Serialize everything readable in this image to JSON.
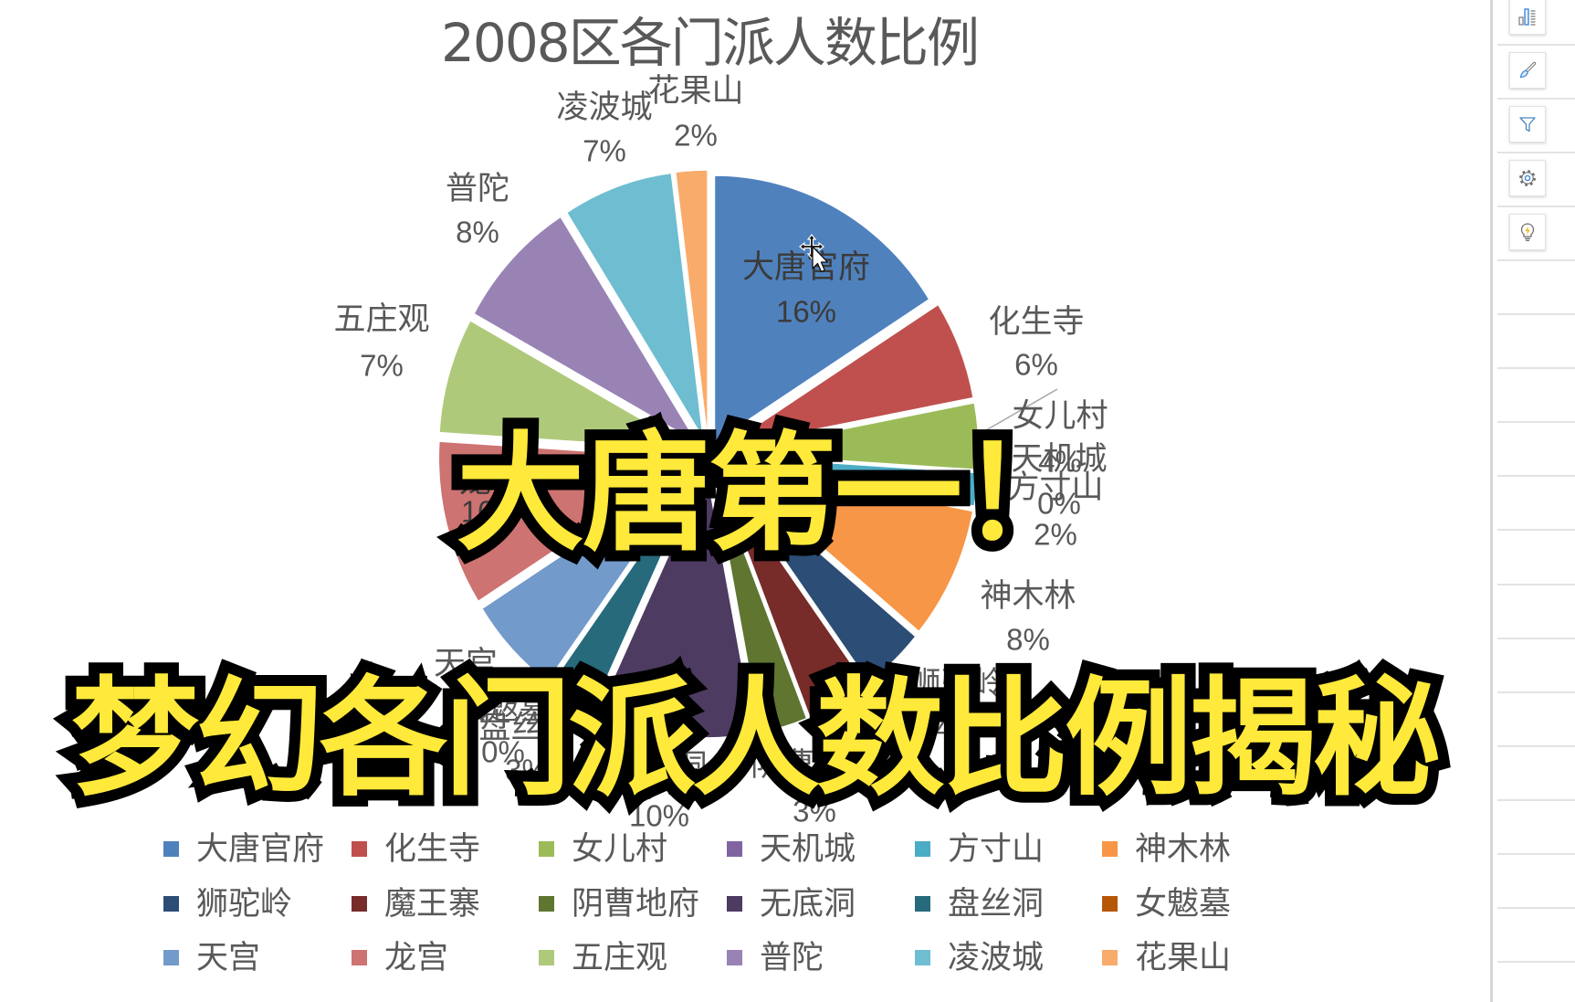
{
  "chart_data": {
    "type": "pie",
    "title": "2008区各门派人数比例",
    "exploded": true,
    "categories": [
      "大唐官府",
      "化生寺",
      "女儿村",
      "天机城",
      "方寸山",
      "神木林",
      "狮驼岭",
      "魔王寨",
      "阴曹地府",
      "无底洞",
      "盘丝洞",
      "女魃墓",
      "天宫",
      "龙宫",
      "五庄观",
      "普陀",
      "凌波城",
      "花果山"
    ],
    "values": [
      16,
      6,
      4,
      0,
      2,
      8,
      4,
      4,
      3,
      10,
      3,
      0,
      6,
      10,
      7,
      8,
      7,
      2
    ],
    "value_labels": [
      "16%",
      "6%",
      "4%",
      "0%",
      "2%",
      "8%",
      "4%",
      "4%",
      "3%",
      "10%",
      "3%",
      "0%",
      "6%",
      "10%",
      "7%",
      "8%",
      "7%",
      "2%"
    ],
    "unit": "%",
    "colors": [
      "#4F81BD",
      "#C0504D",
      "#9BBB59",
      "#8064A2",
      "#4BACC6",
      "#F79646",
      "#2C4D75",
      "#772C2A",
      "#5F7530",
      "#4D3B62",
      "#276A7C",
      "#B65708",
      "#729ACA",
      "#CD7371",
      "#AFC97A",
      "#9983B5",
      "#6FBDD1",
      "#F9AB6B"
    ],
    "legend": {
      "position": "bottom",
      "columns": 6
    },
    "data_labels": {
      "show_category": true,
      "show_percent": true
    }
  },
  "overlay": {
    "line1": "大唐第一！",
    "line2": "梦幻各门派人数比例揭秘",
    "fill": "#FFE93A",
    "stroke": "#000000"
  },
  "sidebar": {
    "buttons": [
      {
        "icon": "chart-elements-icon"
      },
      {
        "icon": "chart-styles-icon"
      },
      {
        "icon": "chart-filters-icon"
      },
      {
        "icon": "gear-icon"
      },
      {
        "icon": "lightbulb-icon"
      }
    ]
  },
  "pointer": {
    "icon": "move-cursor-icon"
  }
}
